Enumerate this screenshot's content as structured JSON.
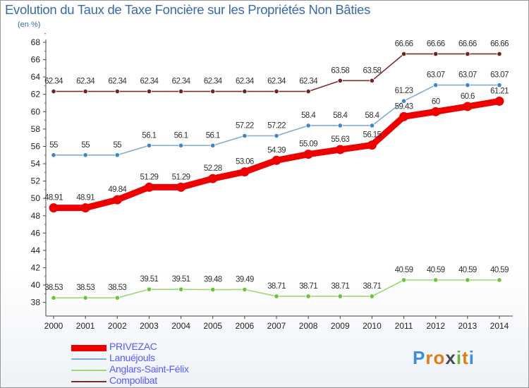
{
  "title": "Evolution du Taux de Taxe Foncière sur les Propriétés Non Bâties",
  "unit_label": "(en %)",
  "logo": {
    "text": "Proxiti",
    "letters": [
      "P",
      "r",
      "o",
      "x",
      "i",
      "t",
      "i"
    ],
    "colors": [
      "#3a8fd8",
      "#e07b1a",
      "#e07b1a",
      "#4a4a4a",
      "#6cb33f",
      "#e07b1a",
      "#3a8fd8"
    ]
  },
  "chart_data": {
    "type": "line",
    "title": "Evolution du Taux de Taxe Foncière sur les Propriétés Non Bâties",
    "ylabel": "(en %)",
    "xlabel": "",
    "ylim": [
      37,
      68
    ],
    "yticks": [
      38,
      40,
      42,
      44,
      46,
      48,
      50,
      52,
      54,
      56,
      58,
      60,
      62,
      64,
      66,
      68
    ],
    "x": [
      "2000",
      "2001",
      "2002",
      "2003",
      "2004",
      "2005",
      "2006",
      "2007",
      "2008",
      "2009",
      "2010",
      "2011",
      "2012",
      "2013",
      "2014"
    ],
    "grid": false,
    "legend_position": "bottom-left",
    "series": [
      {
        "name": "PRIVEZAC",
        "color": "#ee0000",
        "marker_color": "#ee0000",
        "bold": true,
        "values": [
          48.91,
          48.91,
          49.84,
          51.29,
          51.29,
          52.28,
          53.06,
          54.39,
          55.09,
          55.63,
          56.15,
          59.43,
          60,
          60.6,
          61.21
        ],
        "labels": [
          "48.91",
          "48.91",
          "49.84",
          "51.29",
          "51.29",
          "52.28",
          "53.06",
          "54.39",
          "55.09",
          "55.63",
          "56.15",
          "59.43",
          "60",
          "60.6",
          "61.21"
        ]
      },
      {
        "name": "Lanuéjouls",
        "color": "#7eacd8",
        "marker_color": "#3f86c8",
        "bold": false,
        "values": [
          55,
          55,
          55,
          56.1,
          56.1,
          56.1,
          57.22,
          57.22,
          58.4,
          58.4,
          58.4,
          61.23,
          63.07,
          63.07,
          63.07
        ],
        "labels": [
          "55",
          "55",
          "55",
          "56.1",
          "56.1",
          "56.1",
          "57.22",
          "57.22",
          "58.4",
          "58.4",
          "58.4",
          "61.23",
          "63.07",
          "63.07",
          "63.07"
        ]
      },
      {
        "name": "Anglars-Saint-Félix",
        "color": "#9fd86b",
        "marker_color": "#6cc23a",
        "bold": false,
        "values": [
          38.53,
          38.53,
          38.53,
          39.51,
          39.51,
          39.48,
          39.49,
          38.71,
          38.71,
          38.71,
          38.71,
          40.59,
          40.59,
          40.59,
          40.59
        ],
        "labels": [
          "38.53",
          "38.53",
          "38.53",
          "39.51",
          "39.51",
          "39.48",
          "39.49",
          "38.71",
          "38.71",
          "38.71",
          "38.71",
          "40.59",
          "40.59",
          "40.59",
          "40.59"
        ]
      },
      {
        "name": "Compolibat",
        "color": "#7a2e2e",
        "marker_color": "#6e2424",
        "bold": false,
        "values": [
          62.34,
          62.34,
          62.34,
          62.34,
          62.34,
          62.34,
          62.34,
          62.34,
          62.34,
          63.58,
          63.58,
          66.66,
          66.66,
          66.66,
          66.66
        ],
        "labels": [
          "62.34",
          "62.34",
          "62.34",
          "62.34",
          "62.34",
          "62.34",
          "62.34",
          "62.34",
          "62.34",
          "63.58",
          "63.58",
          "66.66",
          "66.66",
          "66.66",
          "66.66"
        ]
      }
    ]
  }
}
